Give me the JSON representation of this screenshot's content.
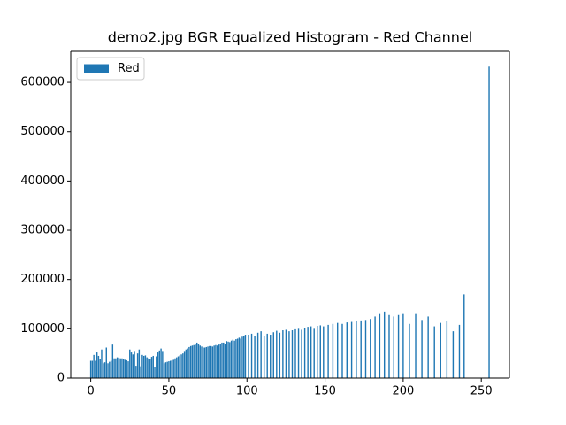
{
  "chart_data": {
    "type": "bar",
    "title": "demo2.jpg BGR Equalized Histogram - Red Channel",
    "color": "#1f77b4",
    "legend": "upper left",
    "series": [
      {
        "name": "Red",
        "color": "#1f77b4",
        "x": [
          0,
          1,
          2,
          3,
          4,
          5,
          6,
          7,
          8,
          9,
          10,
          11,
          12,
          13,
          14,
          15,
          16,
          17,
          18,
          19,
          20,
          21,
          22,
          23,
          24,
          25,
          26,
          27,
          28,
          29,
          30,
          31,
          32,
          33,
          34,
          35,
          36,
          37,
          38,
          39,
          40,
          41,
          42,
          43,
          44,
          45,
          46,
          47,
          48,
          49,
          50,
          51,
          52,
          53,
          54,
          55,
          56,
          57,
          58,
          59,
          60,
          61,
          62,
          63,
          64,
          65,
          66,
          67,
          68,
          69,
          70,
          71,
          72,
          73,
          74,
          75,
          76,
          77,
          78,
          79,
          80,
          81,
          82,
          83,
          84,
          85,
          86,
          87,
          88,
          89,
          90,
          91,
          92,
          93,
          94,
          95,
          96,
          97,
          98,
          99,
          101,
          103,
          105,
          107,
          109,
          111,
          113,
          115,
          117,
          119,
          121,
          123,
          125,
          127,
          129,
          131,
          133,
          135,
          137,
          139,
          141,
          143,
          145,
          147,
          149,
          152,
          155,
          158,
          161,
          164,
          167,
          170,
          173,
          176,
          179,
          182,
          185,
          188,
          191,
          194,
          197,
          200,
          204,
          208,
          212,
          216,
          220,
          224,
          228,
          232,
          236,
          239,
          255
        ],
        "values": [
          35000,
          35000,
          47000,
          35000,
          52000,
          45000,
          38000,
          58000,
          30000,
          32000,
          62000,
          30000,
          33000,
          35000,
          68000,
          40000,
          40000,
          42000,
          41000,
          40000,
          40000,
          38000,
          37000,
          36000,
          34000,
          58000,
          52000,
          48000,
          55000,
          25000,
          50000,
          58000,
          24000,
          47000,
          45000,
          46000,
          42000,
          40000,
          38000,
          43000,
          45000,
          22000,
          44000,
          52000,
          56000,
          60000,
          55000,
          30000,
          32000,
          33000,
          34000,
          35000,
          36000,
          37000,
          40000,
          42000,
          44000,
          46000,
          48000,
          50000,
          55000,
          58000,
          60000,
          63000,
          65000,
          66000,
          67000,
          68000,
          72000,
          70000,
          66000,
          64000,
          62000,
          62000,
          63000,
          64000,
          65000,
          65000,
          64000,
          66000,
          67000,
          66000,
          68000,
          70000,
          72000,
          72000,
          70000,
          75000,
          74000,
          73000,
          76000,
          78000,
          76000,
          79000,
          80000,
          82000,
          80000,
          84000,
          86000,
          88000,
          88000,
          90000,
          86000,
          92000,
          95000,
          85000,
          90000,
          88000,
          93000,
          96000,
          92000,
          97000,
          98000,
          95000,
          97000,
          99000,
          100000,
          98000,
          102000,
          104000,
          105000,
          100000,
          106000,
          107000,
          105000,
          108000,
          110000,
          112000,
          110000,
          113000,
          114000,
          115000,
          117000,
          118000,
          120000,
          125000,
          130000,
          135000,
          128000,
          125000,
          128000,
          130000,
          110000,
          130000,
          118000,
          125000,
          105000,
          112000,
          115000,
          95000,
          108000,
          170000,
          632000
        ]
      }
    ],
    "xlim": [
      -12.8,
      268
    ],
    "xticks": [
      0,
      50,
      100,
      150,
      200,
      250
    ],
    "ylim": [
      0,
      663000
    ],
    "yticks": [
      0,
      100000,
      200000,
      300000,
      400000,
      500000,
      600000
    ]
  }
}
